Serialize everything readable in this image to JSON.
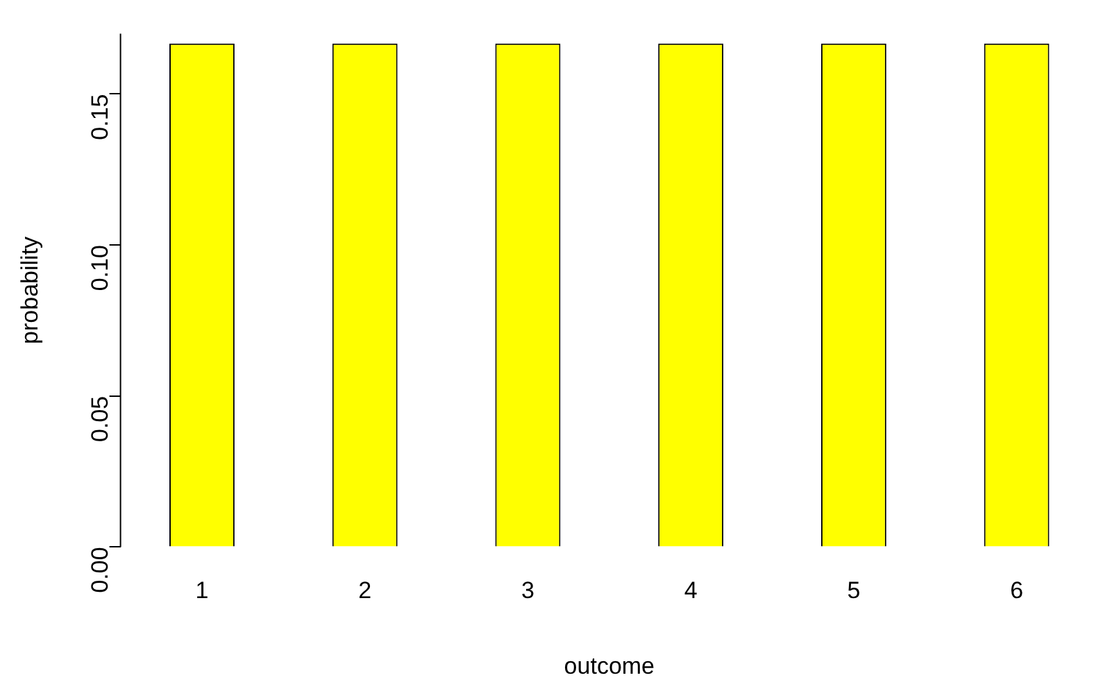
{
  "chart_data": {
    "type": "bar",
    "xlabel": "outcome",
    "ylabel": "probability",
    "categories": [
      "1",
      "2",
      "3",
      "4",
      "5",
      "6"
    ],
    "values": [
      0.1667,
      0.1667,
      0.1667,
      0.1667,
      0.1667,
      0.1667
    ],
    "color": "#ffff00",
    "ylim": [
      0,
      0.17
    ],
    "yticks": [
      {
        "value": 0,
        "label": "0.00"
      },
      {
        "value": 0.05,
        "label": "0.05"
      },
      {
        "value": 0.1,
        "label": "0.10"
      },
      {
        "value": 0.15,
        "label": "0.15"
      }
    ]
  }
}
